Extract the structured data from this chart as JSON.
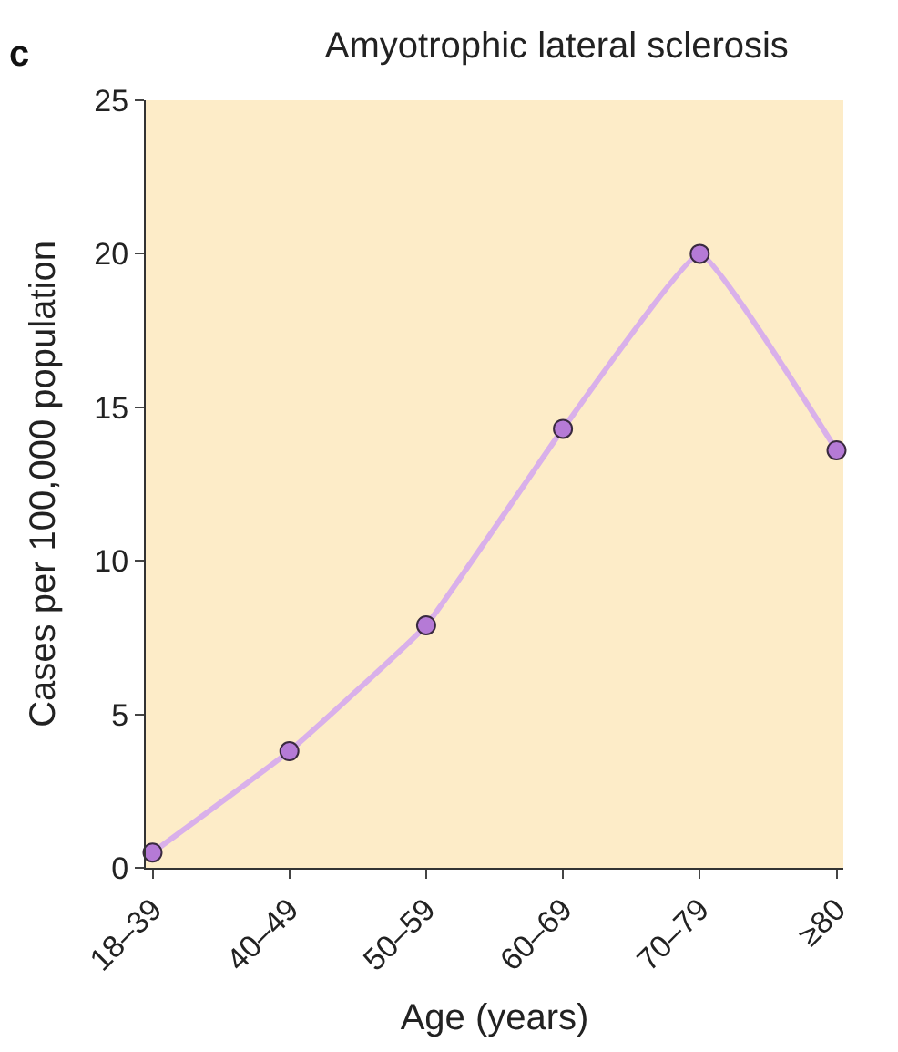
{
  "chart_data": {
    "type": "line",
    "title": "Amyotrophic lateral sclerosis",
    "xlabel": "Age (years)",
    "ylabel": "Cases per 100,000 population",
    "annotations": [
      "c"
    ],
    "categories": [
      "18–39",
      "40–49",
      "50–59",
      "60–69",
      "70–79",
      "≥80"
    ],
    "series": [
      {
        "color": "#d9b0ea",
        "values": [
          0.5,
          3.8,
          7.9,
          14.3,
          20.0,
          13.6
        ]
      }
    ],
    "ylim": [
      0,
      25
    ],
    "yticks": [
      0,
      5,
      10,
      15,
      20,
      25
    ],
    "grid": false,
    "legend": false,
    "marker": "circle",
    "line_style": "solid"
  }
}
